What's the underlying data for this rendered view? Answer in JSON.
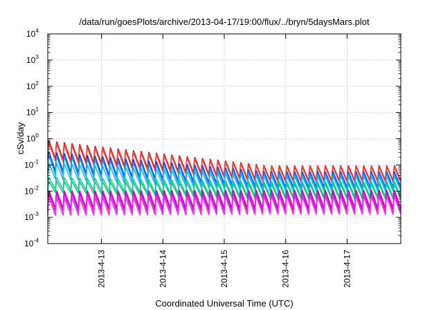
{
  "chart_data": {
    "type": "line",
    "title": "/data/run/goesPlots/archive/2013-04-17/19:00/flux/../bryn/5daysMars.plot",
    "xlabel": "Coordinated Universal Time (UTC)",
    "ylabel": "cSv/day",
    "yscale": "log",
    "ylim": [
      0.0001,
      10000
    ],
    "y_ticks": [
      {
        "base": "10",
        "exp": "-4"
      },
      {
        "base": "10",
        "exp": "-3"
      },
      {
        "base": "10",
        "exp": "-2"
      },
      {
        "base": "10",
        "exp": "-1"
      },
      {
        "base": "10",
        "exp": "0"
      },
      {
        "base": "10",
        "exp": "1"
      },
      {
        "base": "10",
        "exp": "2"
      },
      {
        "base": "10",
        "exp": "3"
      },
      {
        "base": "10",
        "exp": "4"
      }
    ],
    "xlim": [
      "2013-04-12T03:00",
      "2013-04-17T21:00"
    ],
    "x_tick_labels": [
      "2013-4-13",
      "2013-4-14",
      "2013-4-15",
      "2013-4-16",
      "2013-4-17"
    ],
    "grid": true,
    "legend": "none",
    "series_period_hours": 3,
    "series": [
      {
        "color": "#e00000",
        "peak_start": 0.9,
        "trough_start": 0.18,
        "peak_end": 0.1,
        "trough_end": 0.025
      },
      {
        "color": "#ff4040",
        "peak_start": 0.75,
        "trough_start": 0.15,
        "peak_end": 0.09,
        "trough_end": 0.022
      },
      {
        "color": "#1144dd",
        "peak_start": 0.35,
        "trough_start": 0.06,
        "peak_end": 0.06,
        "trough_end": 0.014
      },
      {
        "color": "#1e90ff",
        "peak_start": 0.25,
        "trough_start": 0.045,
        "peak_end": 0.05,
        "trough_end": 0.012
      },
      {
        "color": "#00bfff",
        "peak_start": 0.13,
        "trough_start": 0.03,
        "peak_end": 0.04,
        "trough_end": 0.01
      },
      {
        "color": "#20c0a0",
        "peak_start": 0.035,
        "trough_start": 0.012,
        "peak_end": 0.025,
        "trough_end": 0.006
      },
      {
        "color": "#00d080",
        "peak_start": 0.025,
        "trough_start": 0.009,
        "peak_end": 0.02,
        "trough_end": 0.005
      },
      {
        "color": "#c000c0",
        "peak_start": 0.011,
        "trough_start": 0.0022,
        "peak_end": 0.012,
        "trough_end": 0.0022
      },
      {
        "color": "#e010e0",
        "peak_start": 0.0085,
        "trough_start": 0.0017,
        "peak_end": 0.009,
        "trough_end": 0.0017
      },
      {
        "color": "#ff20ff",
        "peak_start": 0.006,
        "trough_start": 0.0012,
        "peak_end": 0.007,
        "trough_end": 0.0013
      }
    ]
  }
}
